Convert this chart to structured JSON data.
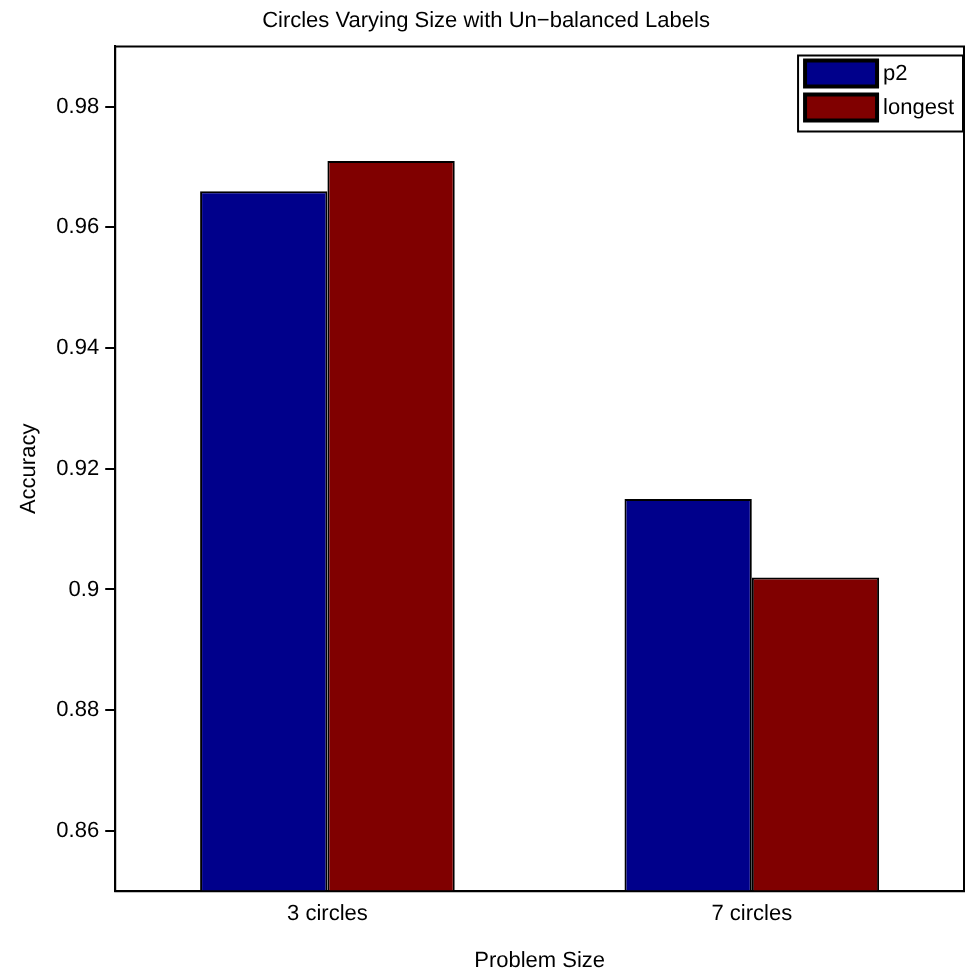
{
  "chart_data": {
    "type": "bar",
    "title": "Circles Varying Size with Un−balanced Labels",
    "xlabel": "Problem Size",
    "ylabel": "Accuracy",
    "categories": [
      "3 circles",
      "7 circles"
    ],
    "series": [
      {
        "name": "p2",
        "color": "#00008b",
        "values": [
          0.966,
          0.915
        ]
      },
      {
        "name": "longest",
        "color": "#800000",
        "values": [
          0.971,
          0.902
        ]
      }
    ],
    "ylim": [
      0.85,
      0.99
    ],
    "yticks": [
      0.86,
      0.88,
      0.9,
      0.92,
      0.94,
      0.96,
      0.98
    ],
    "grid": false,
    "legend": "top right"
  }
}
